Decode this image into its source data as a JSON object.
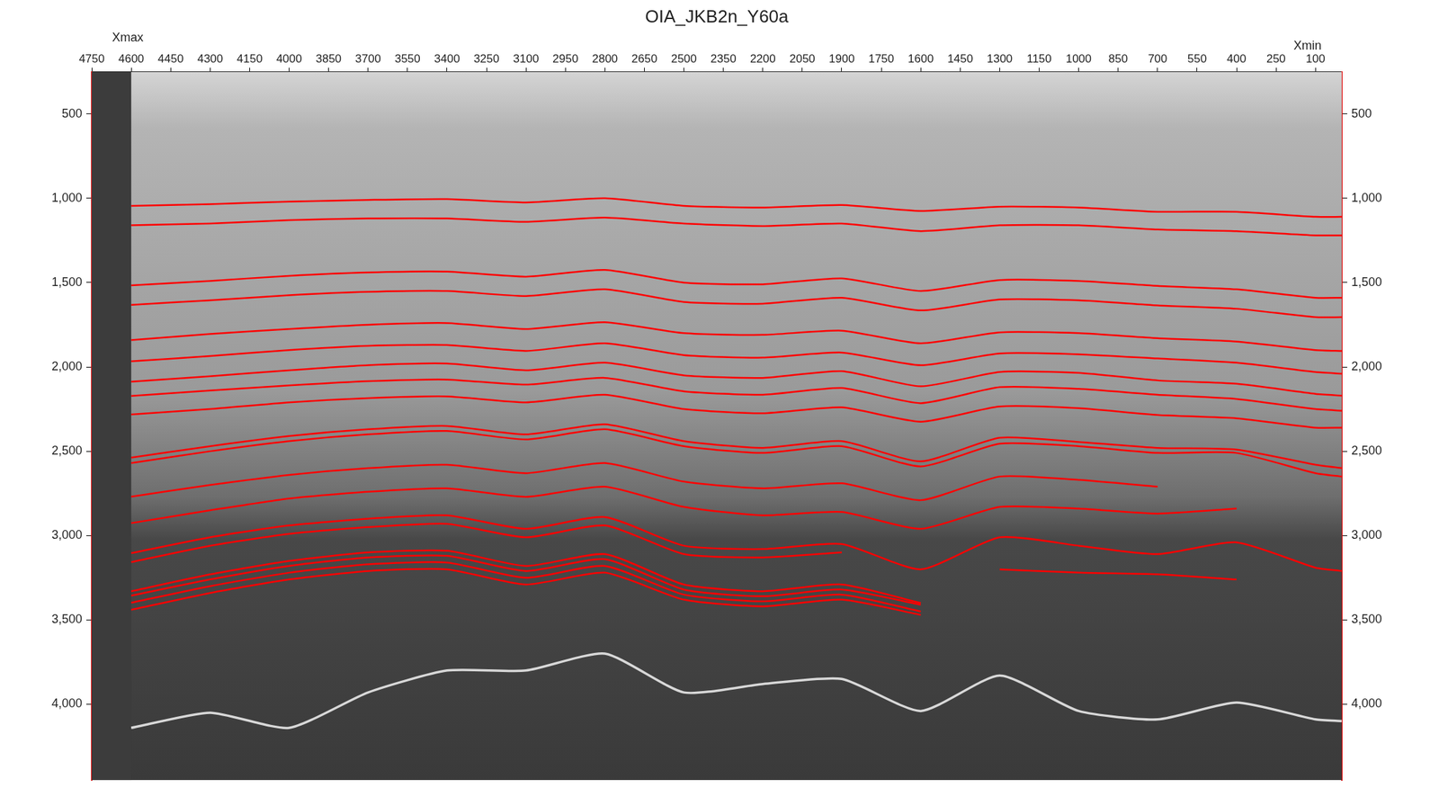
{
  "chart_data": {
    "type": "line",
    "title": "OIA_JKB2n_Y60a",
    "annotations": [
      "Xmax",
      "Xmin"
    ],
    "x": [
      4600,
      4300,
      4000,
      3700,
      3400,
      3100,
      2800,
      2500,
      2200,
      1900,
      1600,
      1300,
      1000,
      700,
      400,
      100,
      0
    ],
    "xlim": [
      0,
      4750
    ],
    "xticks": [
      100,
      250,
      400,
      550,
      700,
      850,
      1000,
      1150,
      1300,
      1450,
      1600,
      1750,
      1900,
      2050,
      2200,
      2350,
      2500,
      2650,
      2800,
      2950,
      3100,
      3250,
      3400,
      3550,
      3700,
      3850,
      4000,
      4150,
      4300,
      4450,
      4600,
      4750
    ],
    "ylim": [
      250,
      4450
    ],
    "yticks": [
      500,
      {
        "value": 1000,
        "label": "1,000"
      },
      {
        "value": 1500,
        "label": "1,500"
      },
      {
        "value": 2000,
        "label": "2,000"
      },
      {
        "value": 2500,
        "label": "2,500"
      },
      {
        "value": 3000,
        "label": "3,000"
      },
      {
        "value": 3500,
        "label": "3,500"
      },
      {
        "value": 4000,
        "label": "4,000"
      }
    ],
    "y2lim": [
      250,
      4450
    ],
    "y2ticks": [
      500,
      {
        "value": 1000,
        "label": "1,000"
      },
      {
        "value": 1500,
        "label": "1,500"
      },
      {
        "value": 2000,
        "label": "2,000"
      },
      {
        "value": 2500,
        "label": "2,500"
      },
      {
        "value": 3000,
        "label": "3,000"
      },
      {
        "value": 3500,
        "label": "3,500"
      },
      {
        "value": 4000,
        "label": "4,000"
      }
    ],
    "grid": false,
    "series": [
      {
        "color": "#ff0000",
        "values": [
          1045,
          1035,
          1020,
          1010,
          1005,
          1025,
          1000,
          1045,
          1055,
          1040,
          1075,
          1050,
          1055,
          1080,
          1080,
          1110,
          1110
        ]
      },
      {
        "color": "#ff0000",
        "values": [
          1160,
          1150,
          1130,
          1120,
          1120,
          1140,
          1115,
          1150,
          1165,
          1150,
          1195,
          1160,
          1160,
          1185,
          1195,
          1220,
          1220
        ]
      },
      {
        "color": "#ff0000",
        "values": [
          1517,
          1490,
          1460,
          1440,
          1435,
          1465,
          1425,
          1500,
          1510,
          1475,
          1550,
          1485,
          1490,
          1520,
          1540,
          1590,
          1590
        ]
      },
      {
        "color": "#ff0000",
        "values": [
          1632,
          1605,
          1575,
          1555,
          1550,
          1580,
          1540,
          1615,
          1625,
          1590,
          1665,
          1600,
          1605,
          1635,
          1655,
          1705,
          1705
        ]
      },
      {
        "color": "#ff0000",
        "values": [
          1841,
          1805,
          1775,
          1750,
          1740,
          1775,
          1735,
          1800,
          1810,
          1785,
          1860,
          1795,
          1800,
          1830,
          1850,
          1900,
          1905
        ]
      },
      {
        "color": "#ff0000",
        "values": [
          1967,
          1935,
          1900,
          1875,
          1870,
          1905,
          1860,
          1930,
          1945,
          1915,
          1990,
          1920,
          1925,
          1950,
          1975,
          2030,
          2040
        ]
      },
      {
        "color": "#ff0000",
        "values": [
          2088,
          2055,
          2020,
          1990,
          1980,
          2020,
          1975,
          2050,
          2065,
          2025,
          2115,
          2030,
          2035,
          2080,
          2100,
          2160,
          2170
        ]
      },
      {
        "color": "#ff0000",
        "values": [
          2172,
          2140,
          2110,
          2085,
          2075,
          2105,
          2065,
          2145,
          2165,
          2125,
          2215,
          2120,
          2130,
          2165,
          2190,
          2250,
          2260
        ]
      },
      {
        "color": "#ff0000",
        "values": [
          2282,
          2250,
          2210,
          2185,
          2175,
          2210,
          2165,
          2250,
          2275,
          2240,
          2325,
          2235,
          2245,
          2285,
          2305,
          2360,
          2360
        ]
      },
      {
        "color": "#ff0000",
        "values": [
          2538,
          2470,
          2410,
          2370,
          2350,
          2400,
          2340,
          2440,
          2480,
          2440,
          2560,
          2420,
          2445,
          2480,
          2490,
          2580,
          2600
        ]
      },
      {
        "color": "#ff0000",
        "values": [
          2570,
          2500,
          2440,
          2400,
          2380,
          2430,
          2370,
          2470,
          2510,
          2470,
          2590,
          2455,
          2470,
          2510,
          2510,
          2630,
          2650
        ]
      },
      {
        "color": "#ff0000",
        "values": [
          2769,
          2700,
          2640,
          2600,
          2580,
          2630,
          2570,
          2680,
          2720,
          2690,
          2790,
          2650,
          2670,
          2710,
          null,
          null,
          null
        ]
      },
      {
        "color": "#ff0000",
        "values": [
          2926,
          2850,
          2780,
          2740,
          2720,
          2770,
          2710,
          2830,
          2880,
          2860,
          2960,
          2830,
          2840,
          2870,
          2840,
          null,
          null
        ]
      },
      {
        "color": "#ff0000",
        "values": [
          3104,
          3010,
          2940,
          2900,
          2880,
          2960,
          2890,
          3060,
          3080,
          3050,
          3200,
          3010,
          3060,
          3110,
          3040,
          3190,
          3210
        ]
      },
      {
        "color": "#ff0000",
        "values": [
          3157,
          3060,
          2990,
          2950,
          2930,
          3010,
          2940,
          3110,
          3130,
          3100,
          null,
          3200,
          3220,
          3230,
          3260,
          null,
          null
        ]
      },
      {
        "color": "#ff0000",
        "values": [
          3330,
          3230,
          3150,
          3100,
          3090,
          3180,
          3110,
          3290,
          3330,
          3290,
          3400,
          null,
          null,
          null,
          null,
          null,
          null
        ]
      },
      {
        "color": "#ff0000",
        "values": [
          3356,
          3260,
          3180,
          3130,
          3120,
          3210,
          3140,
          3320,
          3360,
          3320,
          3410,
          null,
          null,
          null,
          null,
          null,
          null
        ]
      },
      {
        "color": "#ff0000",
        "values": [
          3398,
          3300,
          3220,
          3170,
          3160,
          3250,
          3180,
          3350,
          3390,
          3350,
          3450,
          null,
          null,
          null,
          null,
          null,
          null
        ]
      },
      {
        "color": "#ff0000",
        "values": [
          3440,
          3340,
          3260,
          3210,
          3200,
          3290,
          3220,
          3380,
          3420,
          3380,
          3470,
          null,
          null,
          null,
          null,
          null,
          null
        ]
      },
      {
        "color": "#d8d8d8",
        "values": [
          4140,
          4050,
          4140,
          3930,
          3800,
          3800,
          3700,
          3930,
          3880,
          3850,
          4040,
          3830,
          4040,
          4090,
          3990,
          4090,
          4100
        ]
      }
    ]
  }
}
